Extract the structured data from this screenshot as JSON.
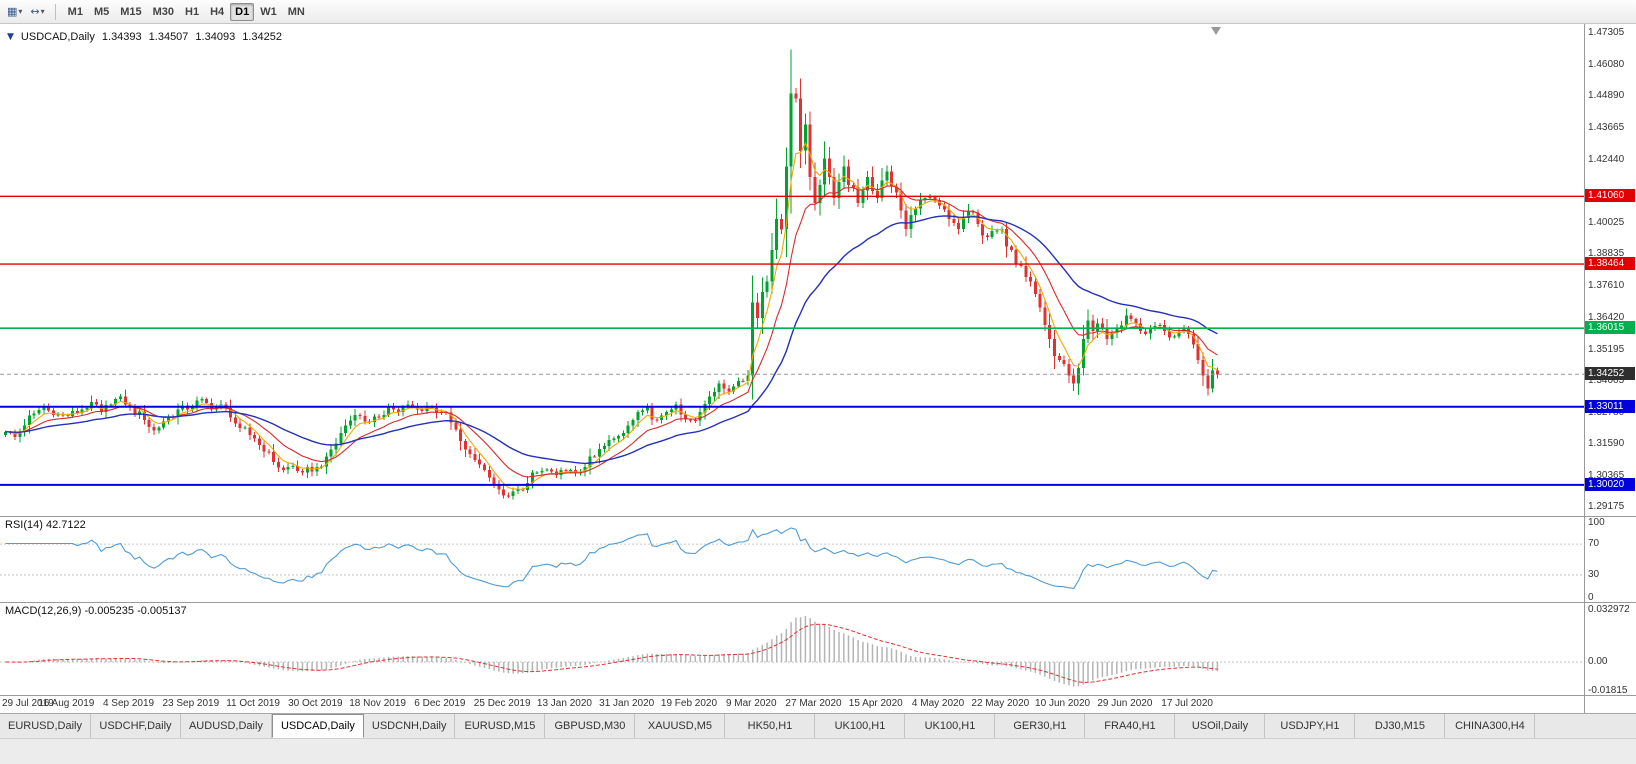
{
  "toolbar": {
    "icon_buttons": [
      {
        "name": "new-chart",
        "glyph": "▦",
        "caret": "▾"
      },
      {
        "name": "chart-profiles",
        "glyph": "↔",
        "caret": "▾"
      }
    ],
    "periods": [
      "M1",
      "M5",
      "M15",
      "M30",
      "H1",
      "H4",
      "D1",
      "W1",
      "MN"
    ],
    "active_period": "D1"
  },
  "chart": {
    "header": {
      "context_glyph": "▼",
      "symbol": "USDCAD,Daily",
      "open": "1.34393",
      "high": "1.34507",
      "low": "1.34093",
      "close": "1.34252"
    },
    "price_scale_labels": [
      "1.47305",
      "1.46080",
      "1.44890",
      "1.43665",
      "1.42440",
      "1.40025",
      "1.38835",
      "1.37610",
      "1.36420",
      "1.35195",
      "1.34005",
      "1.32780",
      "1.31590",
      "1.30365",
      "1.29175"
    ],
    "hlines": [
      {
        "price": 1.4106,
        "label": "1.41060",
        "color": "#e00000",
        "weight": 1.4
      },
      {
        "price": 1.38464,
        "label": "1.38464",
        "color": "#e00000",
        "weight": 1.4
      },
      {
        "price": 1.36015,
        "label": "1.36015",
        "color": "#00b050",
        "weight": 1.6
      },
      {
        "price": 1.33011,
        "label": "1.33011",
        "color": "#0000dd",
        "weight": 2
      },
      {
        "price": 1.3002,
        "label": "1.30020",
        "color": "#0000dd",
        "weight": 2
      }
    ],
    "current_price": {
      "value": 1.34252,
      "label": "1.34252",
      "tag_color": "#2f2f2f",
      "line_color": "#999999"
    },
    "colors": {
      "bull": "#00a32e",
      "bear": "#e03232",
      "ma_fast": "#f2a900",
      "ma_mid": "#d62b2b",
      "ma_slow": "#2431b8",
      "rsi_line": "#4f9bd5",
      "rsi_level": "#c8c8c8",
      "macd_hist": "#b4b4b4",
      "macd_signal": "#e03232"
    }
  },
  "rsi": {
    "label": "RSI(14) 42.7122",
    "scale_labels": [
      "100",
      "70",
      "30",
      "0"
    ],
    "levels": [
      70,
      30
    ]
  },
  "macd": {
    "label": "MACD(12,26,9) -0.005235 -0.005137",
    "scale_labels": [
      "0.032972",
      "0.00",
      "-0.01815"
    ]
  },
  "date_axis": {
    "labels": [
      "29 Jul 2019",
      "16 Aug 2019",
      "4 Sep 2019",
      "23 Sep 2019",
      "11 Oct 2019",
      "30 Oct 2019",
      "18 Nov 2019",
      "6 Dec 2019",
      "25 Dec 2019",
      "13 Jan 2020",
      "31 Jan 2020",
      "19 Feb 2020",
      "9 Mar 2020",
      "27 Mar 2020",
      "15 Apr 2020",
      "4 May 2020",
      "22 May 2020",
      "10 Jun 2020",
      "29 Jun 2020",
      "17 Jul 2020"
    ]
  },
  "tabs": {
    "active_index": 3,
    "items": [
      "EURUSD,Daily",
      "USDCHF,Daily",
      "AUDUSD,Daily",
      "USDCAD,Daily",
      "USDCNH,Daily",
      "EURUSD,M15",
      "GBPUSD,M30",
      "XAUUSD,M5",
      "HK50,H1",
      "UK100,H1",
      "UK100,H1",
      "GER30,H1",
      "FRA40,H1",
      "USOil,Daily",
      "USDJPY,H1",
      "DJ30,M15",
      "CHINA300,H4"
    ]
  },
  "chart_data": {
    "type": "candlestick",
    "symbol": "USDCAD",
    "timeframe": "Daily",
    "visible_range": {
      "first_date": "29 Jul 2019",
      "last_date": "17 Jul 2020"
    },
    "n_bars": 254,
    "last_bar": {
      "open": 1.34393,
      "high": 1.34507,
      "low": 1.34093,
      "close": 1.34252
    },
    "extremes": {
      "peak_index": 164,
      "peak_high": 1.4668,
      "trough_index": 105,
      "trough_low": 1.2952
    },
    "horizontal_levels": [
      1.4106,
      1.38464,
      1.36015,
      1.33011,
      1.3002
    ],
    "indicators": {
      "rsi_period": 14,
      "rsi_last": 42.7122,
      "macd": [
        12,
        26,
        9
      ],
      "macd_last": -0.005235,
      "macd_signal_last": -0.005137,
      "ma_periods": {
        "fast": 5,
        "mid": 13,
        "slow": 34
      }
    },
    "anchors": {
      "indices": [
        0,
        2,
        4,
        6,
        8,
        10,
        13,
        16,
        18,
        20,
        22,
        24,
        26,
        29,
        31,
        33,
        36,
        39,
        41,
        43,
        45,
        47,
        49,
        52,
        54,
        56,
        58,
        60,
        62,
        65,
        67,
        69,
        71,
        73,
        75,
        78,
        80,
        82,
        84,
        86,
        88,
        91,
        93,
        95,
        97,
        99,
        101,
        103,
        105,
        107,
        109,
        111,
        113,
        115,
        117,
        119,
        121,
        123,
        125,
        127,
        130,
        132,
        134,
        136,
        138,
        140,
        143,
        145,
        147,
        149,
        151,
        153,
        155,
        156,
        157,
        158,
        159,
        160,
        161,
        162,
        163,
        164,
        165,
        166,
        167,
        168,
        169,
        170,
        171,
        172,
        173,
        174,
        175,
        176,
        178,
        180,
        182,
        184,
        186,
        188,
        190,
        192,
        195,
        197,
        199,
        201,
        203,
        205,
        208,
        210,
        212,
        214,
        216,
        218,
        220,
        222,
        223,
        224,
        225,
        226,
        227,
        228,
        230,
        232,
        234,
        236,
        238,
        240,
        242,
        244,
        246,
        247,
        248,
        249,
        250,
        251,
        252,
        253
      ],
      "closes": [
        1.3205,
        1.3185,
        1.323,
        1.3275,
        1.33,
        1.327,
        1.3265,
        1.329,
        1.332,
        1.328,
        1.331,
        1.334,
        1.33,
        1.325,
        1.321,
        1.3245,
        1.329,
        1.33,
        1.333,
        1.329,
        1.331,
        1.326,
        1.322,
        1.318,
        1.313,
        1.309,
        1.306,
        1.3075,
        1.305,
        1.307,
        1.311,
        1.316,
        1.323,
        1.327,
        1.3245,
        1.326,
        1.33,
        1.328,
        1.331,
        1.329,
        1.33,
        1.328,
        1.324,
        1.317,
        1.312,
        1.308,
        1.303,
        1.2985,
        1.296,
        1.2985,
        1.301,
        1.305,
        1.306,
        1.304,
        1.3055,
        1.3045,
        1.307,
        1.311,
        1.315,
        1.318,
        1.323,
        1.328,
        1.33,
        1.325,
        1.328,
        1.331,
        1.325,
        1.328,
        1.334,
        1.339,
        1.336,
        1.34,
        1.342,
        1.37,
        1.364,
        1.374,
        1.378,
        1.39,
        1.402,
        1.398,
        1.422,
        1.45,
        1.448,
        1.428,
        1.438,
        1.418,
        1.408,
        1.415,
        1.425,
        1.418,
        1.41,
        1.416,
        1.422,
        1.415,
        1.408,
        1.418,
        1.41,
        1.42,
        1.412,
        1.398,
        1.406,
        1.41,
        1.407,
        1.402,
        1.398,
        1.405,
        1.4,
        1.395,
        1.398,
        1.39,
        1.384,
        1.378,
        1.368,
        1.356,
        1.348,
        1.342,
        1.339,
        1.345,
        1.356,
        1.363,
        1.359,
        1.362,
        1.356,
        1.36,
        1.365,
        1.362,
        1.358,
        1.361,
        1.359,
        1.357,
        1.36,
        1.358,
        1.354,
        1.348,
        1.342,
        1.337,
        1.344,
        1.34252
      ]
    }
  }
}
